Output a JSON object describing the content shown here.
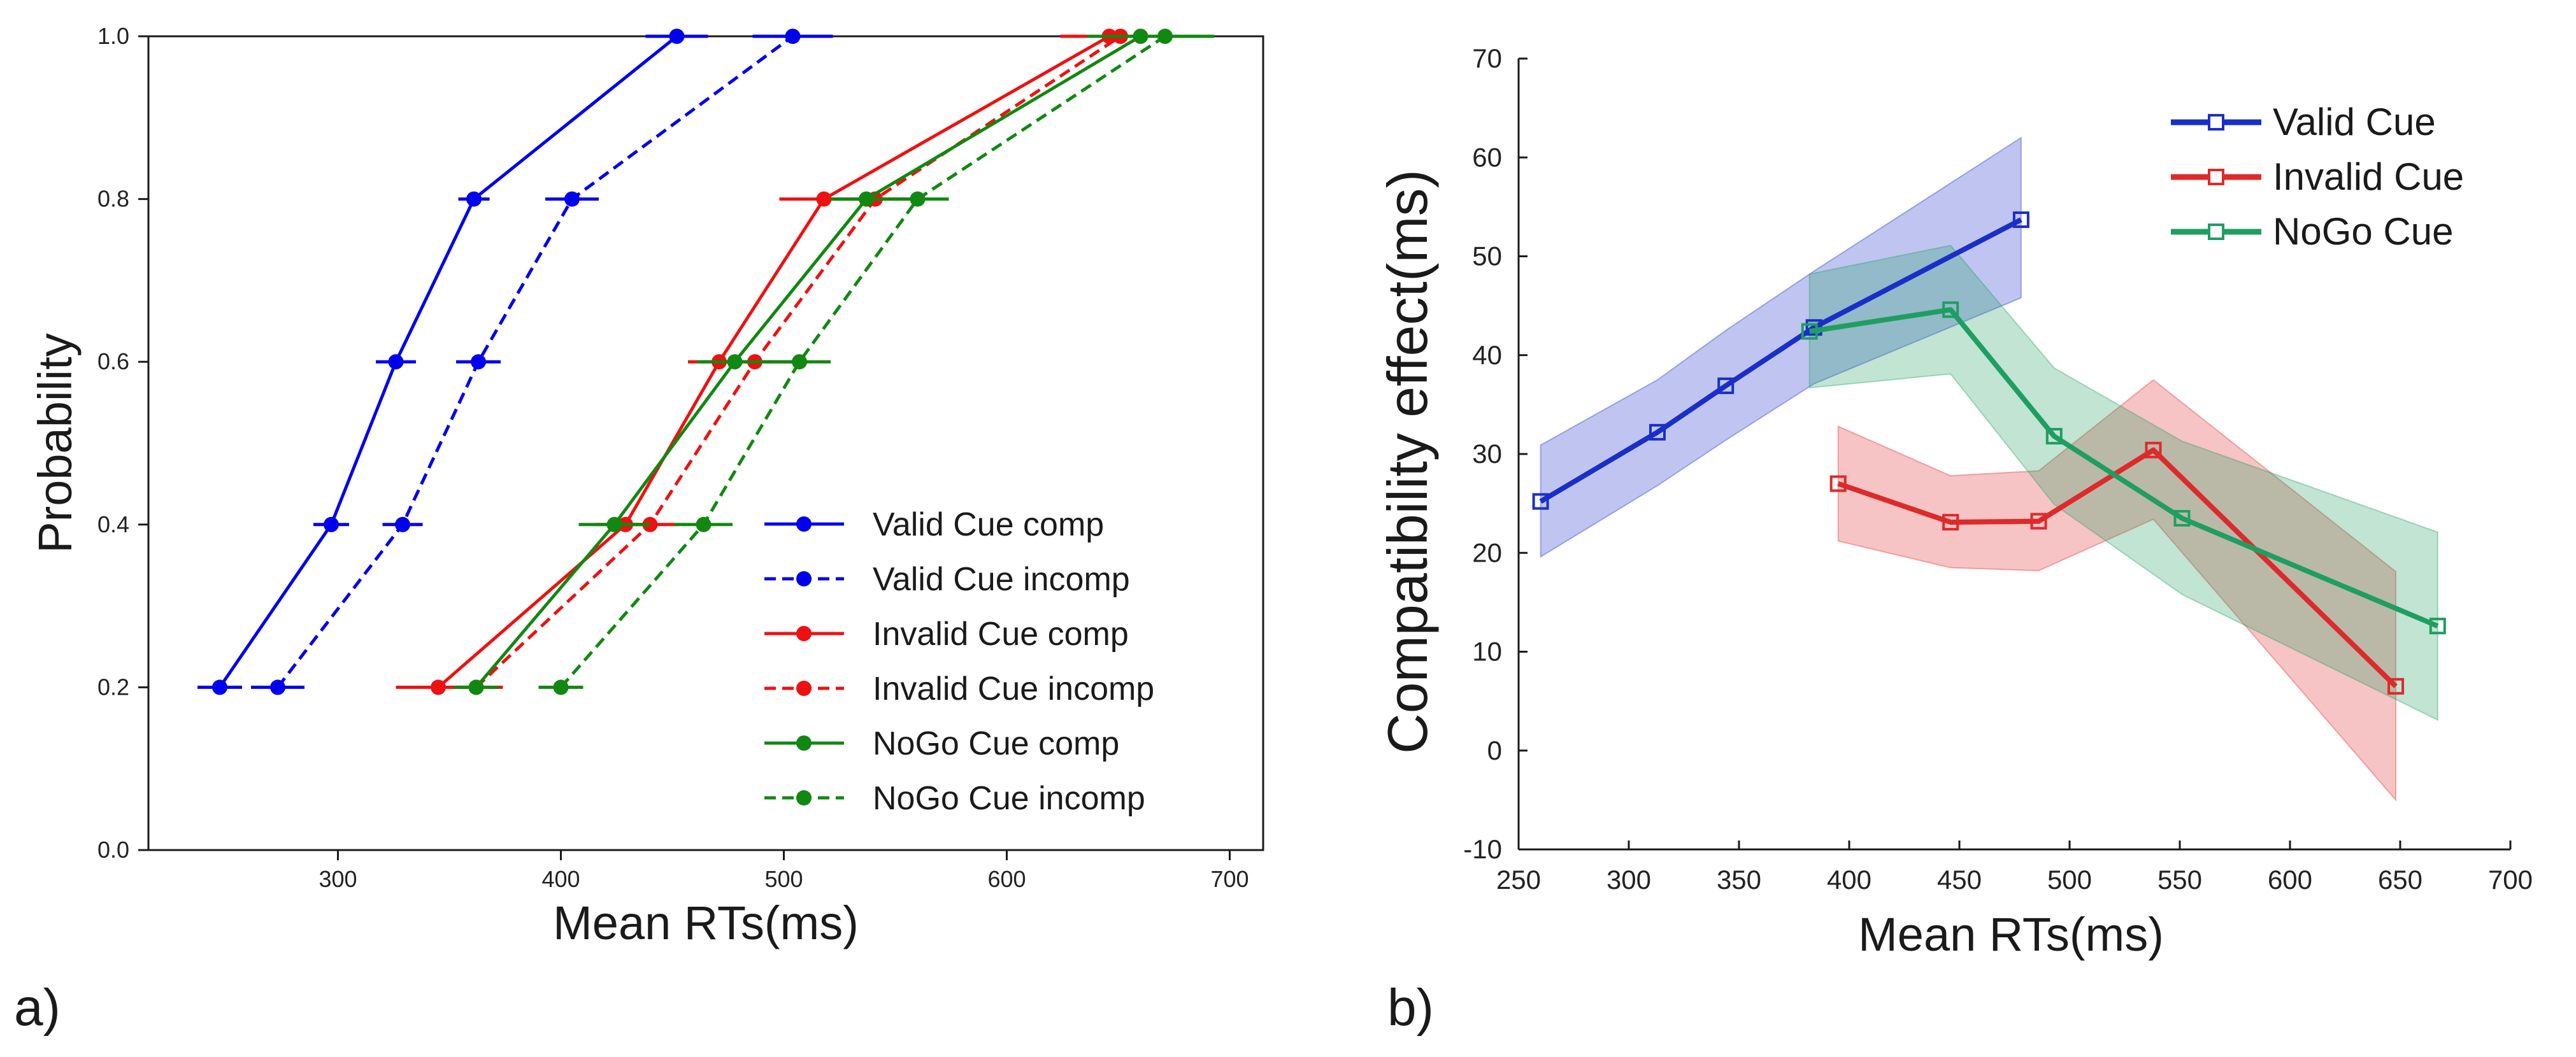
{
  "panel_a_label": "a)",
  "panel_b_label": "b)",
  "colors": {
    "blue": "#0000ee",
    "red": "#ee1111",
    "green": "#118811",
    "b_blue": "#1a2ec8",
    "b_red": "#dd2a2a",
    "b_green": "#1f9e62"
  },
  "chart_data": [
    {
      "type": "line",
      "title": "",
      "xlabel": "Mean RTs(ms)",
      "ylabel": "Probability",
      "xlim": [
        215,
        715
      ],
      "ylim": [
        0.0,
        1.0
      ],
      "xticks": [
        "300",
        "400",
        "500",
        "600",
        "700"
      ],
      "yticks": [
        "0.0",
        "0.2",
        "0.4",
        "0.6",
        "0.8",
        "1.0"
      ],
      "legend_position": "lower-right",
      "series": [
        {
          "name": "Valid Cue comp",
          "style": "solid",
          "color": "blue",
          "y": [
            0.2,
            0.4,
            0.6,
            0.8,
            1.0
          ],
          "x": [
            247,
            297,
            326,
            361,
            452
          ],
          "err": [
            10,
            8,
            9,
            7,
            14
          ]
        },
        {
          "name": "Valid Cue incomp",
          "style": "dashed",
          "color": "blue",
          "y": [
            0.2,
            0.4,
            0.6,
            0.8,
            1.0
          ],
          "x": [
            273,
            329,
            363,
            405,
            504
          ],
          "err": [
            12,
            9,
            10,
            12,
            18
          ]
        },
        {
          "name": "Invalid Cue comp",
          "style": "solid",
          "color": "red",
          "y": [
            0.2,
            0.4,
            0.6,
            0.8,
            1.0
          ],
          "x": [
            345,
            429,
            471,
            518,
            646
          ],
          "err": [
            19,
            14,
            14,
            20,
            22
          ]
        },
        {
          "name": "Invalid Cue incomp",
          "style": "dashed",
          "color": "red",
          "y": [
            0.2,
            0.4,
            0.6,
            0.8,
            1.0
          ],
          "x": [
            362,
            440,
            487,
            541,
            651
          ],
          "err": [
            12,
            13,
            18,
            20,
            24
          ]
        },
        {
          "name": "NoGo Cue comp",
          "style": "solid",
          "color": "green",
          "y": [
            0.2,
            0.4,
            0.6,
            0.8,
            1.0
          ],
          "x": [
            362,
            424,
            478,
            537,
            660
          ],
          "err": [
            10,
            16,
            17,
            16,
            24
          ]
        },
        {
          "name": "NoGo Cue incomp",
          "style": "dashed",
          "color": "green",
          "y": [
            0.2,
            0.4,
            0.6,
            0.8,
            1.0
          ],
          "x": [
            400,
            464,
            507,
            560,
            671
          ],
          "err": [
            10,
            13,
            14,
            14,
            22
          ]
        }
      ]
    },
    {
      "type": "line",
      "title": "",
      "xlabel": "Mean RTs(ms)",
      "ylabel": "Compatibility effect(ms)",
      "xlim": [
        250,
        700
      ],
      "ylim": [
        -10,
        70
      ],
      "xticks": [
        "250",
        "300",
        "350",
        "400",
        "450",
        "500",
        "550",
        "600",
        "650",
        "700"
      ],
      "yticks": [
        "-10",
        "0",
        "10",
        "20",
        "30",
        "40",
        "50",
        "60",
        "70"
      ],
      "legend_position": "top-right",
      "series": [
        {
          "name": "Valid Cue",
          "color": "b_blue",
          "x": [
            260,
            313,
            344,
            384,
            478
          ],
          "y": [
            25.2,
            32.2,
            36.9,
            42.8,
            53.7
          ],
          "band_upper": [
            30.9,
            37.5,
            42.5,
            48.5,
            62.0
          ],
          "band_lower": [
            19.6,
            26.8,
            31.4,
            37.1,
            45.8
          ]
        },
        {
          "name": "Invalid Cue",
          "color": "b_red",
          "x": [
            395,
            446,
            486,
            538,
            648
          ],
          "y": [
            27.0,
            23.1,
            23.2,
            30.4,
            6.5
          ],
          "band_upper": [
            32.8,
            27.8,
            28.3,
            37.5,
            18.1
          ],
          "band_lower": [
            21.2,
            18.5,
            18.2,
            23.4,
            -5.0
          ]
        },
        {
          "name": "NoGo Cue",
          "color": "b_green",
          "x": [
            382,
            446,
            493,
            551,
            667
          ],
          "y": [
            42.4,
            44.6,
            31.8,
            23.5,
            12.6
          ],
          "band_upper": [
            48.2,
            51.1,
            38.7,
            31.3,
            22.1
          ],
          "band_lower": [
            36.7,
            38.1,
            24.9,
            15.8,
            3.1
          ]
        }
      ]
    }
  ]
}
